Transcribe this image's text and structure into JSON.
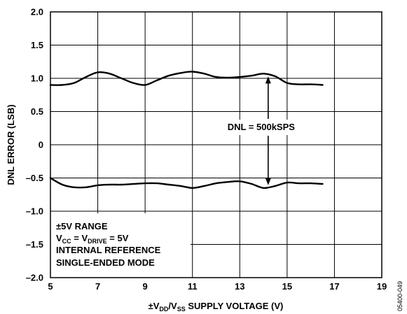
{
  "chart_data": {
    "type": "line",
    "xlabel": {
      "pre": "±V",
      "sub1": "DD",
      "mid": "/V",
      "sub2": "SS",
      "post": " SUPPLY VOLTAGE (V)"
    },
    "ylabel": "DNL ERROR (LSB)",
    "xlim": [
      5,
      19
    ],
    "ylim": [
      -2.0,
      2.0
    ],
    "x_ticks": [
      5,
      7,
      9,
      11,
      13,
      15,
      17,
      19
    ],
    "y_ticks": [
      2.0,
      1.5,
      1.0,
      0.5,
      0,
      -0.5,
      -1.0,
      -1.5,
      -2.0
    ],
    "x_tick_labels": [
      "5",
      "7",
      "9",
      "11",
      "13",
      "15",
      "17",
      "19"
    ],
    "y_tick_labels": [
      "2.0",
      "1.5",
      "1.0",
      "0.5",
      "0",
      "–0.5",
      "–1.0",
      "–1.5",
      "–2.0"
    ],
    "grid": true,
    "series": [
      {
        "x": [
          5.0,
          5.5,
          6.0,
          6.5,
          7.0,
          7.5,
          8.0,
          8.5,
          9.0,
          9.5,
          10.0,
          10.5,
          11.0,
          11.5,
          12.0,
          12.5,
          13.0,
          13.5,
          14.0,
          14.5,
          15.0,
          15.5,
          16.0,
          16.5
        ],
        "y": [
          0.9,
          0.9,
          0.93,
          1.02,
          1.09,
          1.07,
          1.0,
          0.93,
          0.9,
          0.97,
          1.04,
          1.08,
          1.1,
          1.07,
          1.02,
          1.01,
          1.02,
          1.04,
          1.07,
          1.03,
          0.93,
          0.91,
          0.91,
          0.9
        ]
      },
      {
        "x": [
          5.0,
          5.5,
          6.0,
          6.5,
          7.0,
          7.5,
          8.0,
          8.5,
          9.0,
          9.5,
          10.0,
          10.5,
          11.0,
          11.5,
          12.0,
          12.5,
          13.0,
          13.5,
          14.0,
          14.5,
          15.0,
          15.5,
          16.0,
          16.5
        ],
        "y": [
          -0.5,
          -0.6,
          -0.64,
          -0.64,
          -0.61,
          -0.6,
          -0.6,
          -0.59,
          -0.58,
          -0.58,
          -0.6,
          -0.62,
          -0.65,
          -0.62,
          -0.58,
          -0.56,
          -0.55,
          -0.59,
          -0.65,
          -0.62,
          -0.57,
          -0.58,
          -0.58,
          -0.59
        ]
      }
    ],
    "annotations": {
      "dnl_label": "DNL = 500kSPS",
      "arrow_x": 14.2,
      "arrow_top_y": 1.07,
      "arrow_bottom_y": -0.65
    },
    "conditions": {
      "line1": "±5V RANGE",
      "line2": {
        "a": "V",
        "a_sub": "CC",
        "b": " = V",
        "b_sub": "DRIVE",
        "c": " = 5V"
      },
      "line3": "INTERNAL REFERENCE",
      "line4": "SINGLE-ENDED MODE"
    },
    "figure_id": "05400-049"
  }
}
